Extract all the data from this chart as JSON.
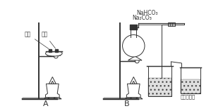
{
  "bg_color": "#ffffff",
  "label_A": "A",
  "label_B": "B",
  "label_red_phosphorus": "红磷",
  "label_white_phosphorus": "白磷",
  "label_NaHCO3": "NaHCO₃",
  "label_Na2CO3": "Na₂CO₃",
  "label_lime_water": "澄清石灰水",
  "line_color": "#333333",
  "water_color": "#d8d8d8",
  "figsize": [
    2.99,
    1.58
  ],
  "dpi": 100
}
